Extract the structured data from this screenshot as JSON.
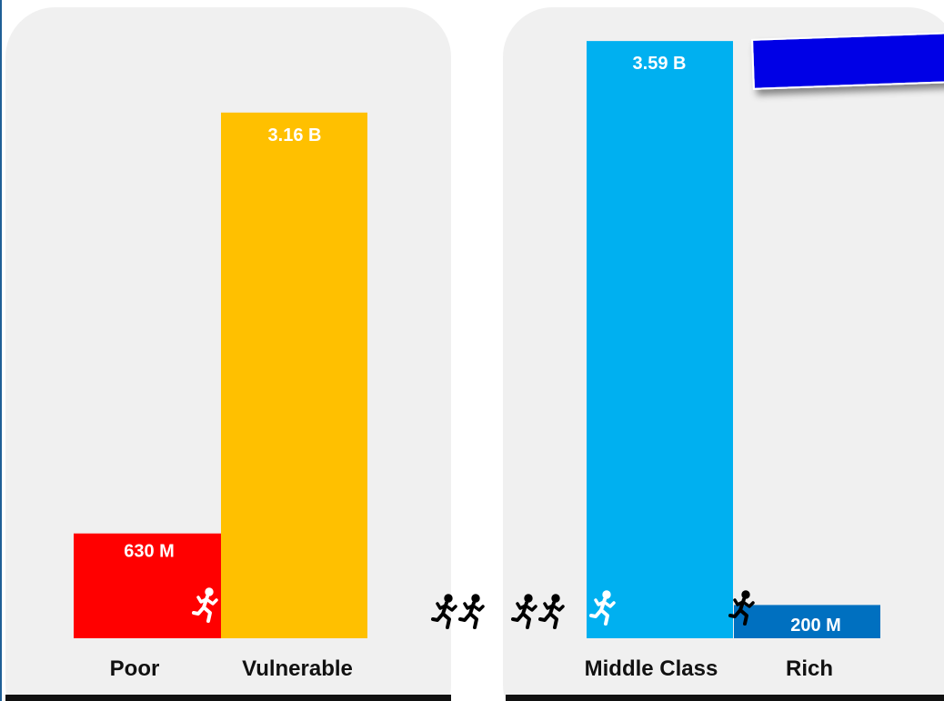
{
  "chart_data": {
    "type": "bar",
    "categories": [
      "Poor",
      "Vulnerable",
      "Middle Class",
      "Rich"
    ],
    "values": [
      630,
      3160,
      3590,
      200
    ],
    "value_unit": "millions of people",
    "data_labels": [
      "630 M",
      "3.16 B",
      "3.59 B",
      "200 M"
    ],
    "colors": [
      "#ff0000",
      "#ffc000",
      "#00b0f0",
      "#0070c0"
    ],
    "groups": [
      {
        "categories": [
          "Poor",
          "Vulnerable"
        ]
      },
      {
        "categories": [
          "Middle Class",
          "Rich"
        ]
      }
    ],
    "ylim": [
      0,
      3700
    ],
    "grid": false,
    "legend": "none",
    "title": "",
    "xlabel": "",
    "ylabel": ""
  },
  "icons": {
    "figure": "running-person-icon",
    "callout": "blue-callout-box"
  },
  "colors": {
    "panel": "#f0f0f0",
    "callout": "#0000e6",
    "axis": "#111111"
  }
}
